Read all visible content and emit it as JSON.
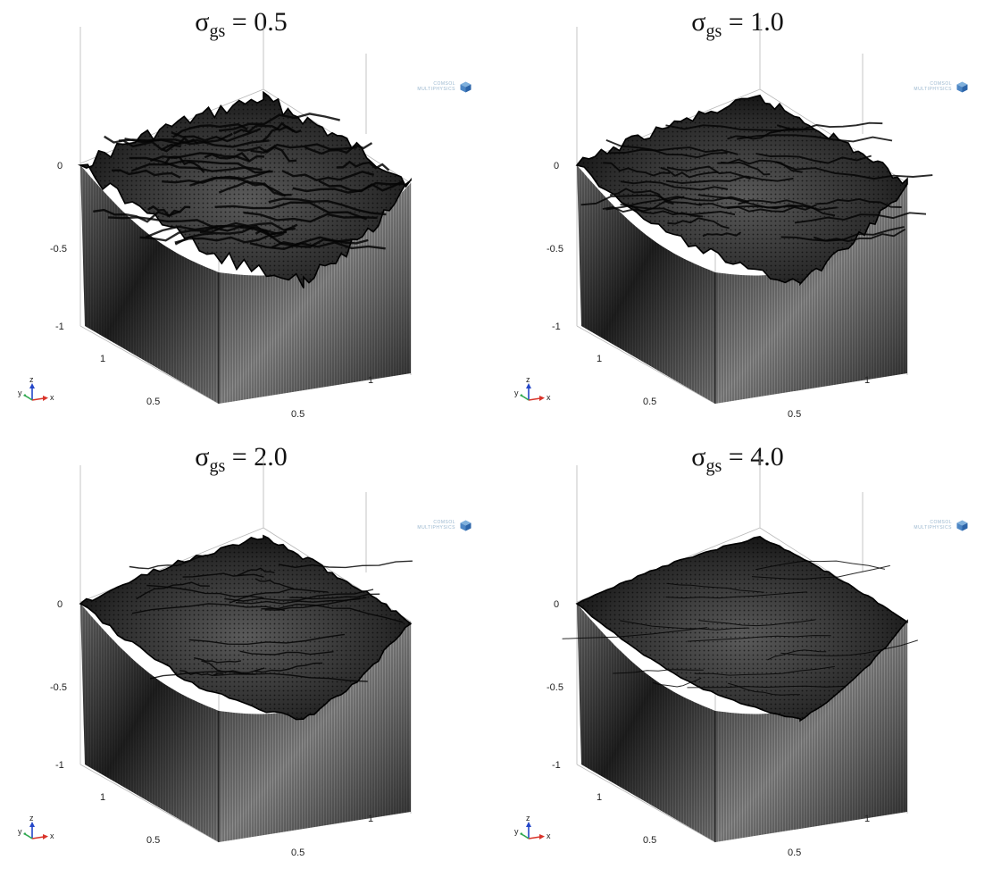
{
  "panels": [
    {
      "id": "p0",
      "sigma_symbol": "σ",
      "subscript": "gs",
      "equals": " = ",
      "value": "0.5",
      "roughness": 1.0
    },
    {
      "id": "p1",
      "sigma_symbol": "σ",
      "subscript": "gs",
      "equals": " = ",
      "value": "1.0",
      "roughness": 0.7
    },
    {
      "id": "p2",
      "sigma_symbol": "σ",
      "subscript": "gs",
      "equals": " = ",
      "value": "2.0",
      "roughness": 0.4
    },
    {
      "id": "p3",
      "sigma_symbol": "σ",
      "subscript": "gs",
      "equals": " = ",
      "value": "4.0",
      "roughness": 0.15
    }
  ],
  "z_ticks": [
    "0",
    "-0.5",
    "-1"
  ],
  "y_ticks": [
    "1",
    "0.5"
  ],
  "x_ticks": [
    "1",
    "0.5"
  ],
  "triad_labels": {
    "y": "y",
    "z": "z",
    "x": "x"
  },
  "logo": {
    "line1": "COMSOL",
    "line2": "MULTIPHYSICS"
  },
  "colors": {
    "surface": "#1a1a1a",
    "wall_dark": "#262626",
    "wall_light": "#8a8a8a",
    "axis": "#b8b8b8",
    "triad_x": "#d9342b",
    "triad_y": "#2fa84f",
    "triad_z": "#2446c8"
  }
}
